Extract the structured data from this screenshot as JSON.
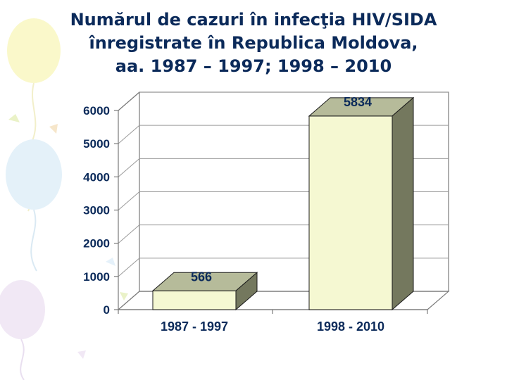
{
  "title": {
    "lines": [
      "Numărul de cazuri în infecţia HIV/SIDA",
      "înregistrate în Republica Moldova,",
      "aa. 1987 – 1997; 1998 – 2010"
    ]
  },
  "colors": {
    "title": "#0b2a5a",
    "bar_front": "#f5f8d2",
    "bar_top": "#b6bb9a",
    "bar_side": "#74785e",
    "axis": "#7a7a7a",
    "gridline": "#9a9a9a"
  },
  "chart_data": {
    "type": "bar",
    "style": "3d-column",
    "categories": [
      "1987 - 1997",
      "1998 - 2010"
    ],
    "values": [
      566,
      5834
    ],
    "data_labels": [
      "566",
      "5834"
    ],
    "title": "",
    "xlabel": "",
    "ylabel": "",
    "ylim": [
      0,
      6000
    ],
    "yticks": [
      0,
      1000,
      2000,
      3000,
      4000,
      5000,
      6000
    ],
    "ytick_labels": [
      "0",
      "1000",
      "2000",
      "3000",
      "4000",
      "5000",
      "6000"
    ],
    "grid": true,
    "legend": "none"
  }
}
